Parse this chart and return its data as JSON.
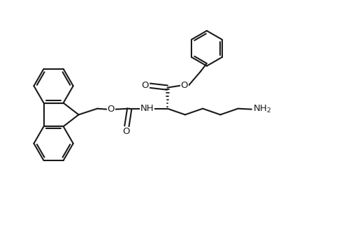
{
  "bg_color": "#ffffff",
  "line_color": "#1a1a1a",
  "line_width": 1.5,
  "figsize": [
    4.88,
    3.24
  ],
  "dpi": 100,
  "xlim": [
    0,
    10
  ],
  "ylim": [
    0,
    6.5
  ]
}
